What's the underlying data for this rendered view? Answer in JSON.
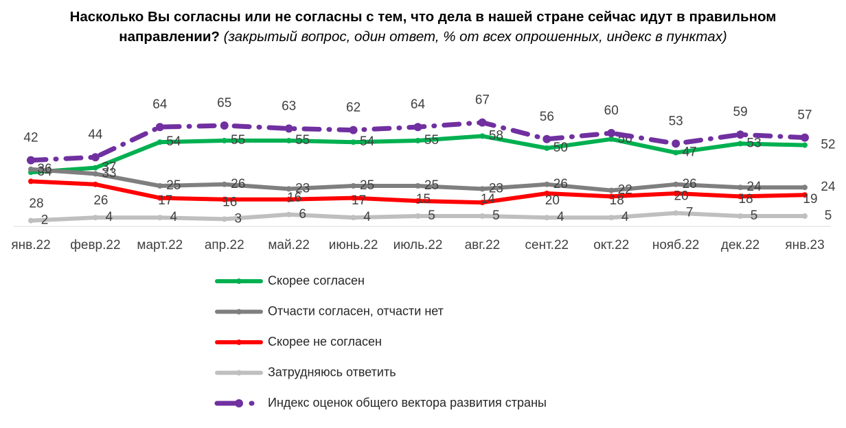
{
  "chart_data": {
    "type": "line",
    "title": "Насколько Вы согласны или не согласны с тем, что дела в нашей стране сейчас идут в правильном направлении?",
    "subtitle": "(закрытый вопрос, один ответ, % от всех опрошенных, индекс в пунктах)",
    "categories": [
      "янв.22",
      "февр.22",
      "март.22",
      "апр.22",
      "май.22",
      "июнь.22",
      "июль.22",
      "авг.22",
      "сент.22",
      "окт.22",
      "нояб.22",
      "дек.22",
      "янв.23"
    ],
    "series": [
      {
        "name": "Скорее согласен",
        "color": "#00b050",
        "line_style": "solid",
        "values": [
          34,
          37,
          54,
          55,
          55,
          54,
          55,
          58,
          50,
          56,
          47,
          53,
          52
        ]
      },
      {
        "name": "Отчасти согласен, отчасти нет",
        "color": "#7f7f7f",
        "line_style": "solid",
        "values": [
          36,
          33,
          25,
          26,
          23,
          25,
          25,
          23,
          26,
          22,
          26,
          24,
          24
        ]
      },
      {
        "name": "Скорее не согласен",
        "color": "#ff0000",
        "line_style": "solid",
        "values": [
          28,
          26,
          17,
          16,
          16,
          17,
          15,
          14,
          20,
          18,
          20,
          18,
          19
        ]
      },
      {
        "name": "Затрудняюсь ответить",
        "color": "#bfbfbf",
        "line_style": "solid",
        "values": [
          2,
          4,
          4,
          3,
          6,
          4,
          5,
          5,
          4,
          4,
          7,
          5,
          5
        ]
      },
      {
        "name": "Индекс  оценок общего вектора развития страны",
        "color": "#7030a0",
        "line_style": "dash-dot",
        "values": [
          42,
          44,
          64,
          65,
          63,
          62,
          64,
          67,
          56,
          60,
          53,
          59,
          57
        ]
      }
    ]
  }
}
